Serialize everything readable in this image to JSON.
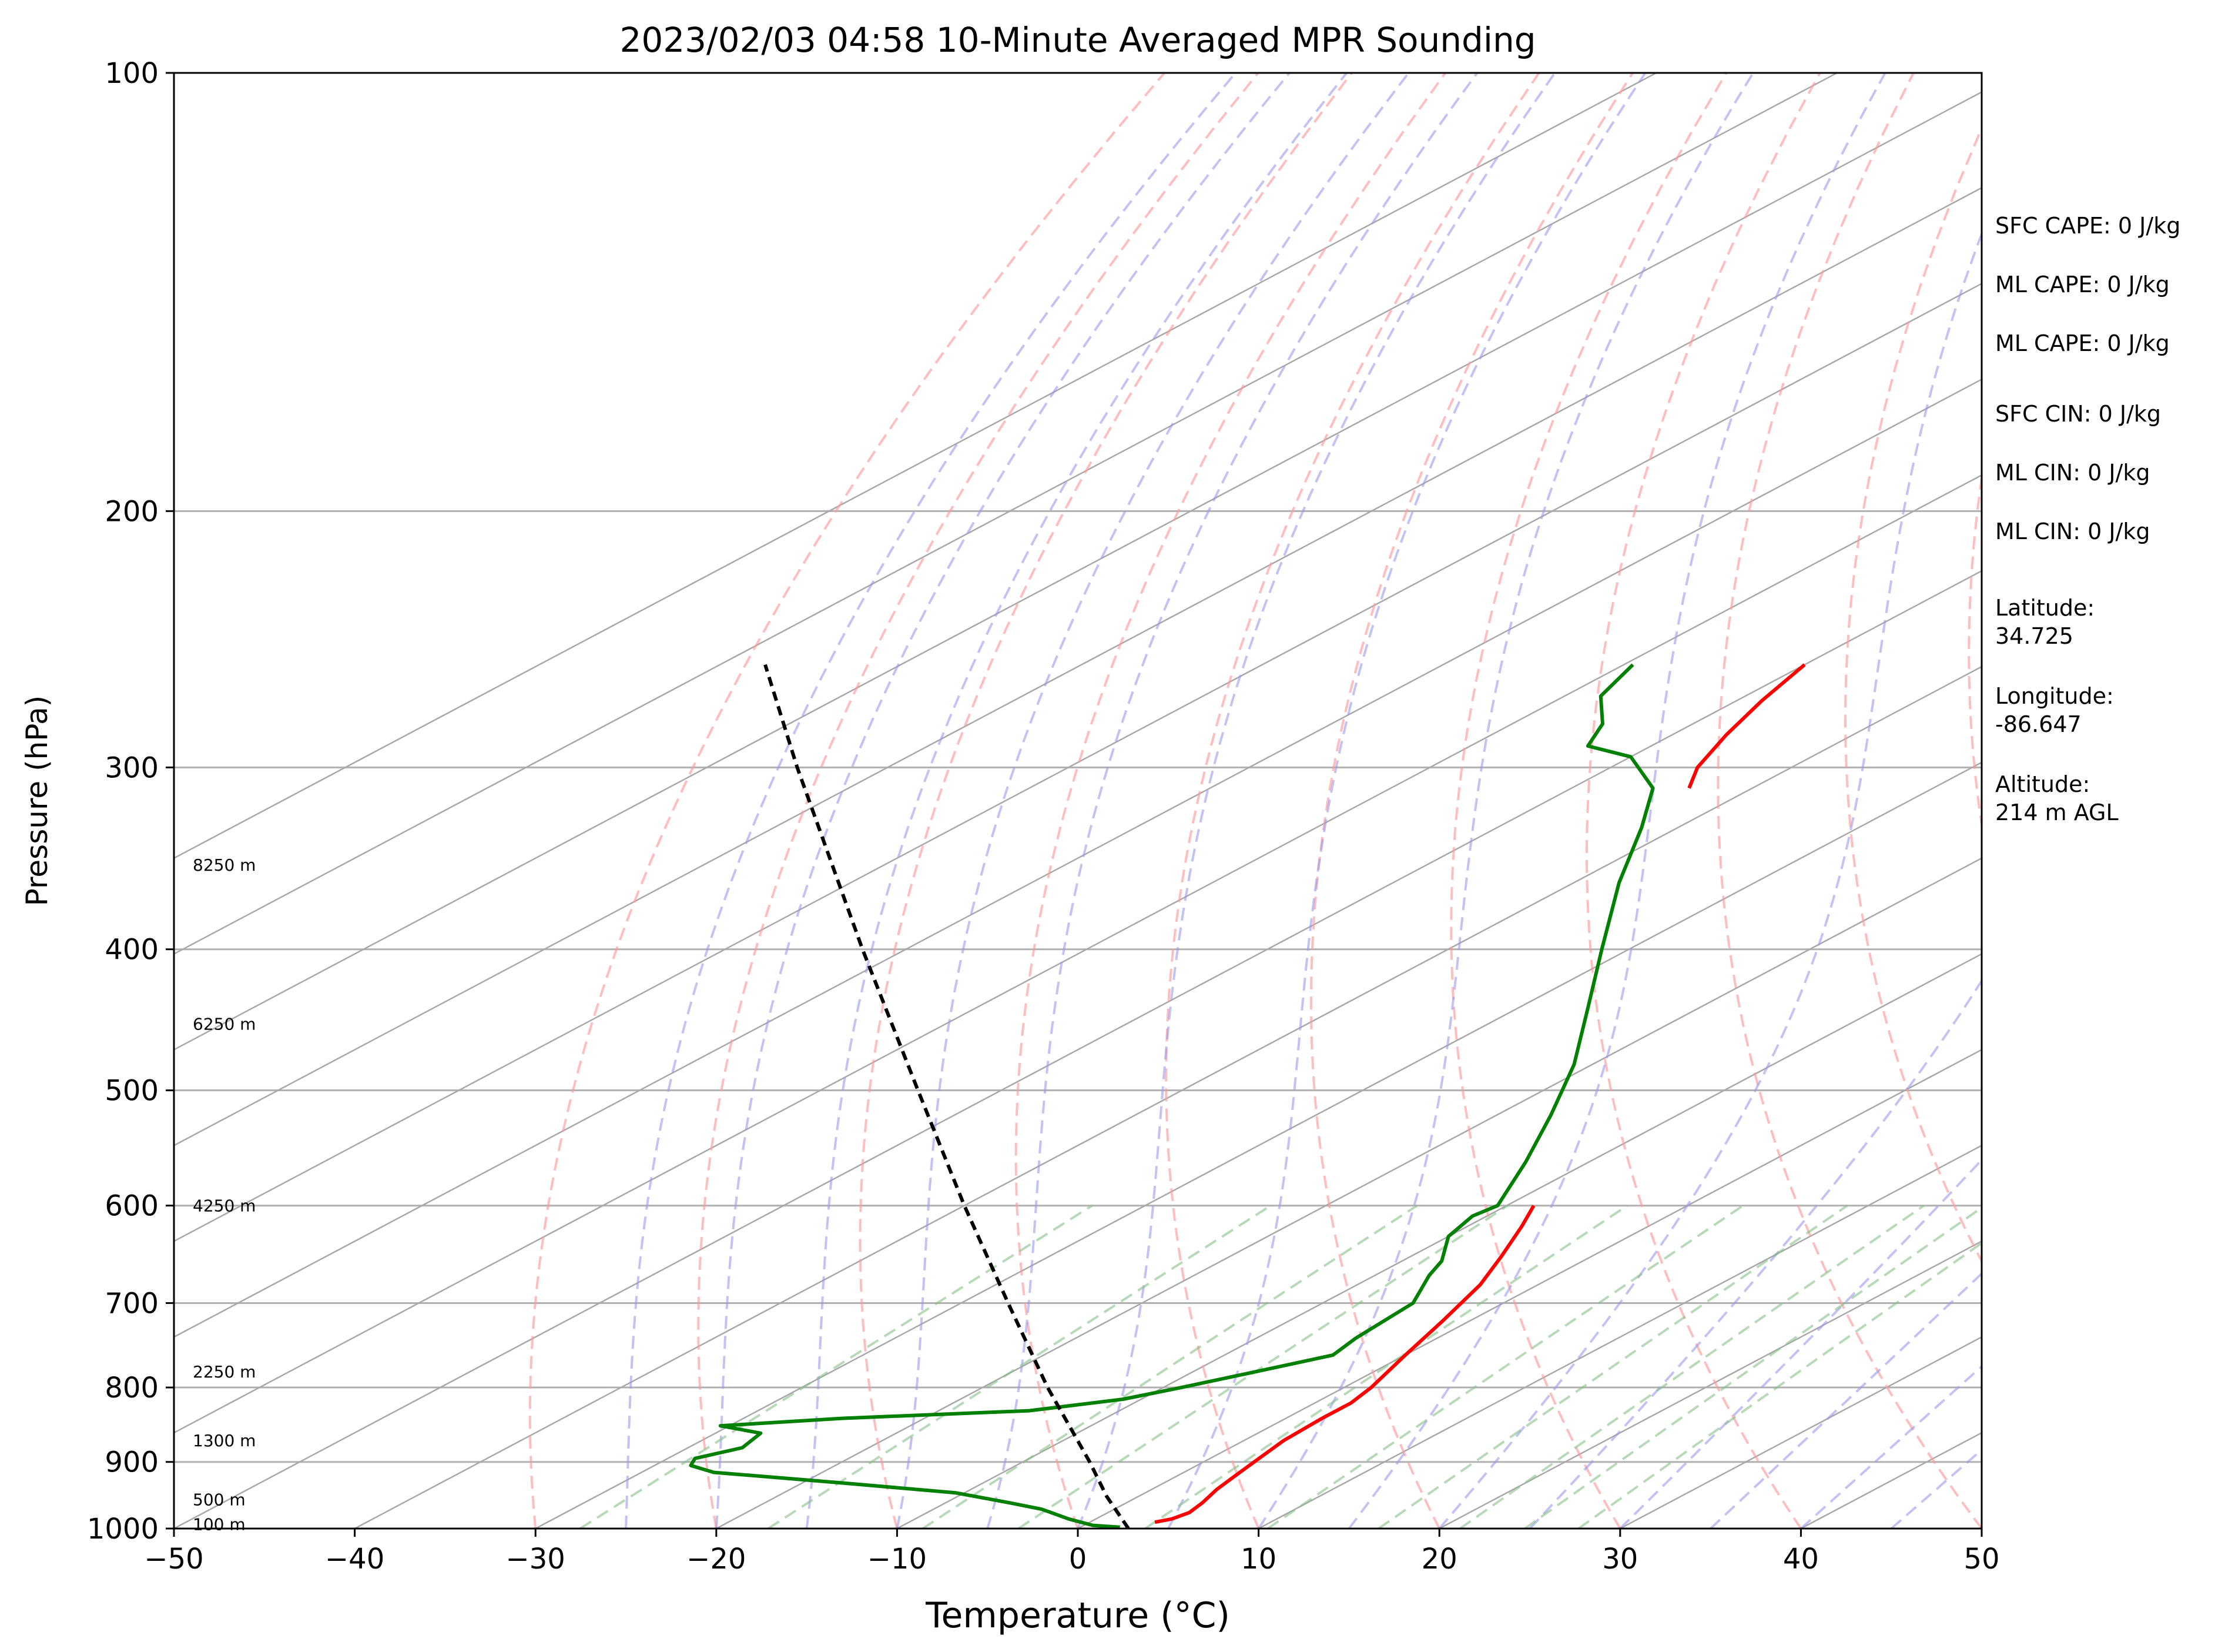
{
  "chart_data": {
    "type": "skew-t",
    "title": "2023/02/03 04:58 10-Minute Averaged MPR Sounding",
    "xlabel": "Temperature (°C)",
    "ylabel": "Pressure (hPa)",
    "xlim": [
      -50,
      50
    ],
    "ylim": [
      1000,
      100
    ],
    "y_scale": "log",
    "grid": true,
    "x_ticks": [
      "−50",
      "−40",
      "−30",
      "−20",
      "−10",
      "0",
      "10",
      "20",
      "30",
      "40",
      "50"
    ],
    "y_ticks": [
      "100",
      "200",
      "300",
      "400",
      "500",
      "600",
      "700",
      "800",
      "900",
      "1000"
    ],
    "height_labels": [
      {
        "text": "8250 m",
        "p": 350
      },
      {
        "text": "6250 m",
        "p": 450
      },
      {
        "text": "4250 m",
        "p": 600
      },
      {
        "text": "2250 m",
        "p": 780
      },
      {
        "text": "1300 m",
        "p": 870
      },
      {
        "text": "500 m",
        "p": 955
      },
      {
        "text": "100 m",
        "p": 993
      }
    ],
    "series": [
      {
        "key": "temperature",
        "color": "#ff0000",
        "points": [
          {
            "p": 990,
            "t": 3.6
          },
          {
            "p": 985,
            "t": 4.2
          },
          {
            "p": 975,
            "t": 4.5
          },
          {
            "p": 960,
            "t": 4.2
          },
          {
            "p": 940,
            "t": 3.6
          },
          {
            "p": 920,
            "t": 3.2
          },
          {
            "p": 900,
            "t": 2.8
          },
          {
            "p": 870,
            "t": 2.2
          },
          {
            "p": 840,
            "t": 2.0
          },
          {
            "p": 820,
            "t": 2.0
          },
          {
            "p": 800,
            "t": 1.5
          },
          {
            "p": 760,
            "t": 0.0
          },
          {
            "p": 720,
            "t": -1.5
          },
          {
            "p": 680,
            "t": -3.2
          },
          {
            "p": 650,
            "t": -5.0
          },
          {
            "p": 620,
            "t": -7.0
          },
          {
            "p": 600,
            "t": -8.5
          }
        ]
      },
      {
        "key": "temperature_upper",
        "color": "#ff0000",
        "points": [
          {
            "p": 310,
            "t": -43.5
          },
          {
            "p": 300,
            "t": -45.2
          },
          {
            "p": 285,
            "t": -47.0
          },
          {
            "p": 270,
            "t": -48.6
          },
          {
            "p": 255,
            "t": -50.0
          }
        ]
      },
      {
        "key": "dewpoint",
        "color": "#008000",
        "points": [
          {
            "p": 998,
            "t": 2.2
          },
          {
            "p": 995,
            "t": 0.5
          },
          {
            "p": 985,
            "t": -1.5
          },
          {
            "p": 970,
            "t": -4.0
          },
          {
            "p": 960,
            "t": -6.5
          },
          {
            "p": 945,
            "t": -10.5
          },
          {
            "p": 930,
            "t": -18.0
          },
          {
            "p": 915,
            "t": -26.0
          },
          {
            "p": 905,
            "t": -28.0
          },
          {
            "p": 895,
            "t": -28.5
          },
          {
            "p": 880,
            "t": -27.0
          },
          {
            "p": 860,
            "t": -27.5
          },
          {
            "p": 850,
            "t": -30.5
          },
          {
            "p": 840,
            "t": -24.5
          },
          {
            "p": 830,
            "t": -15.0
          },
          {
            "p": 815,
            "t": -11.0
          },
          {
            "p": 800,
            "t": -9.0
          },
          {
            "p": 780,
            "t": -6.5
          },
          {
            "p": 760,
            "t": -4.0
          },
          {
            "p": 740,
            "t": -4.5
          },
          {
            "p": 700,
            "t": -5.0
          },
          {
            "p": 670,
            "t": -7.0
          },
          {
            "p": 655,
            "t": -7.8
          },
          {
            "p": 630,
            "t": -10.0
          },
          {
            "p": 610,
            "t": -10.8
          },
          {
            "p": 600,
            "t": -10.5
          },
          {
            "p": 560,
            "t": -13.5
          },
          {
            "p": 520,
            "t": -17.0
          },
          {
            "p": 480,
            "t": -21.0
          },
          {
            "p": 440,
            "t": -26.0
          },
          {
            "p": 400,
            "t": -31.5
          },
          {
            "p": 360,
            "t": -37.5
          },
          {
            "p": 330,
            "t": -42.0
          },
          {
            "p": 310,
            "t": -45.5
          },
          {
            "p": 295,
            "t": -50.0
          },
          {
            "p": 290,
            "t": -53.5
          },
          {
            "p": 280,
            "t": -55.0
          },
          {
            "p": 268,
            "t": -58.0
          },
          {
            "p": 255,
            "t": -59.5
          }
        ]
      },
      {
        "key": "parcel",
        "color": "#000000",
        "dashed": true,
        "points": [
          {
            "p": 1000,
            "t": 2.8
          },
          {
            "p": 950,
            "t": -1.8
          },
          {
            "p": 900,
            "t": -6.3
          },
          {
            "p": 850,
            "t": -11.2
          },
          {
            "p": 800,
            "t": -16.4
          },
          {
            "p": 700,
            "t": -27.4
          },
          {
            "p": 600,
            "t": -40.0
          },
          {
            "p": 500,
            "t": -54.6
          },
          {
            "p": 400,
            "t": -72.4
          },
          {
            "p": 300,
            "t": -95.0
          },
          {
            "p": 255,
            "t": -107.5
          }
        ]
      }
    ],
    "annotations": [
      "SFC CAPE: 0 J/kg",
      "ML CAPE: 0 J/kg",
      "ML CAPE: 0 J/kg",
      "SFC CIN: 0 J/kg",
      "ML CIN: 0 J/kg",
      "ML CIN: 0 J/kg",
      "Latitude:\n34.725",
      "Longitude:\n-86.647",
      "Altitude:\n214 m AGL"
    ]
  }
}
